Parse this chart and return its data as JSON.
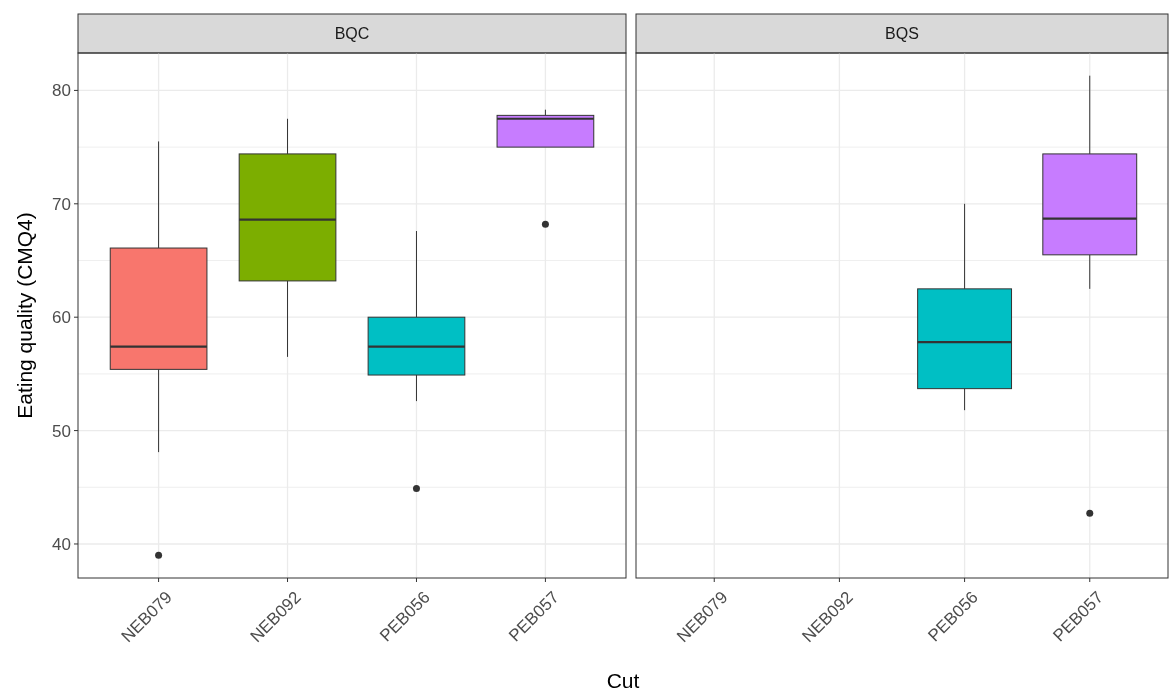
{
  "chart_data": [
    {
      "type": "box",
      "title": "BQC",
      "xlabel": "Cut",
      "ylabel": "Eating quality (CMQ4)",
      "categories": [
        "NEB079",
        "NEB092",
        "PEB056",
        "PEB057"
      ],
      "colors": [
        "#f8766d",
        "#7cae00",
        "#00bfc4",
        "#c77cff"
      ],
      "boxes": [
        {
          "low": 48.1,
          "q1": 55.4,
          "median": 57.4,
          "q3": 66.1,
          "high": 75.5,
          "outliers": [
            39.0
          ]
        },
        {
          "low": 56.5,
          "q1": 63.2,
          "median": 68.6,
          "q3": 74.4,
          "high": 77.5
        },
        {
          "low": 52.6,
          "q1": 54.9,
          "median": 57.4,
          "q3": 60.0,
          "high": 67.6,
          "outliers": [
            44.9
          ]
        },
        {
          "low": 75.0,
          "q1": 75.0,
          "median": 77.5,
          "q3": 77.8,
          "high": 78.3,
          "outliers": [
            68.2
          ]
        }
      ],
      "ylim": [
        37,
        83.3
      ],
      "yticks": [
        40,
        50,
        60,
        70,
        80
      ],
      "grid": true
    },
    {
      "type": "box",
      "title": "BQS",
      "categories": [
        "NEB079",
        "NEB092",
        "PEB056",
        "PEB057"
      ],
      "colors": [
        null,
        null,
        "#00bfc4",
        "#c77cff"
      ],
      "boxes": [
        null,
        null,
        {
          "low": 51.8,
          "q1": 53.7,
          "median": 57.8,
          "q3": 62.5,
          "high": 70.0
        },
        {
          "low": 62.5,
          "q1": 65.5,
          "median": 68.7,
          "q3": 74.4,
          "high": 81.3,
          "outliers": [
            42.7
          ]
        }
      ],
      "ylim": [
        37,
        83.3
      ],
      "yticks": [
        40,
        50,
        60,
        70,
        80
      ],
      "grid": true,
      "tick_labels": "x"
    }
  ]
}
